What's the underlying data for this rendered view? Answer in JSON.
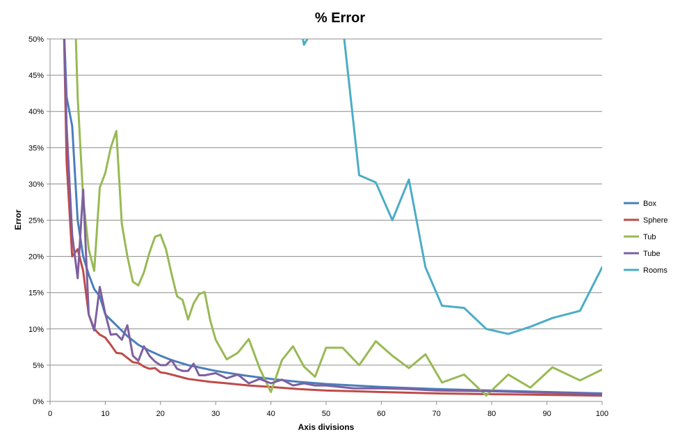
{
  "chart_data": {
    "type": "line",
    "title": "% Error",
    "xlabel": "Axis divisions",
    "ylabel": "Error",
    "xlim": [
      0,
      100
    ],
    "ylim": [
      0,
      0.5
    ],
    "x_ticks": [
      0,
      10,
      20,
      30,
      40,
      50,
      60,
      70,
      80,
      90,
      100
    ],
    "y_ticks": [
      0,
      0.05,
      0.1,
      0.15,
      0.2,
      0.25,
      0.3,
      0.35,
      0.4,
      0.45,
      0.5
    ],
    "x_tick_labels": [
      "0",
      "10",
      "20",
      "30",
      "40",
      "50",
      "60",
      "70",
      "80",
      "90",
      "100"
    ],
    "y_tick_labels": [
      "0%",
      "5%",
      "10%",
      "15%",
      "20%",
      "25%",
      "30%",
      "35%",
      "40%",
      "45%",
      "50%"
    ],
    "grid": "horizontal",
    "legend_position": "right",
    "series": [
      {
        "name": "Box",
        "color": "#4a7ebb",
        "points": [
          [
            2.5,
            0.52
          ],
          [
            3,
            0.42
          ],
          [
            4,
            0.38
          ],
          [
            5,
            0.25
          ],
          [
            6,
            0.2
          ],
          [
            7,
            0.175
          ],
          [
            8,
            0.155
          ],
          [
            9,
            0.145
          ],
          [
            10,
            0.12
          ],
          [
            12,
            0.105
          ],
          [
            14,
            0.09
          ],
          [
            16,
            0.078
          ],
          [
            18,
            0.07
          ],
          [
            20,
            0.063
          ],
          [
            22,
            0.057
          ],
          [
            25,
            0.05
          ],
          [
            30,
            0.042
          ],
          [
            35,
            0.036
          ],
          [
            40,
            0.031
          ],
          [
            45,
            0.027
          ],
          [
            50,
            0.024
          ],
          [
            55,
            0.022
          ],
          [
            60,
            0.02
          ],
          [
            70,
            0.017
          ],
          [
            80,
            0.015
          ],
          [
            90,
            0.013
          ],
          [
            100,
            0.011
          ]
        ]
      },
      {
        "name": "Sphere",
        "color": "#be4b48",
        "points": [
          [
            2.5,
            0.52
          ],
          [
            3,
            0.33
          ],
          [
            4,
            0.2
          ],
          [
            5,
            0.21
          ],
          [
            6,
            0.18
          ],
          [
            7,
            0.12
          ],
          [
            8,
            0.1
          ],
          [
            9,
            0.092
          ],
          [
            10,
            0.088
          ],
          [
            11,
            0.078
          ],
          [
            12,
            0.067
          ],
          [
            13,
            0.066
          ],
          [
            15,
            0.054
          ],
          [
            16,
            0.053
          ],
          [
            17,
            0.048
          ],
          [
            18,
            0.045
          ],
          [
            19,
            0.046
          ],
          [
            20,
            0.04
          ],
          [
            21,
            0.039
          ],
          [
            23,
            0.035
          ],
          [
            25,
            0.031
          ],
          [
            27,
            0.029
          ],
          [
            29,
            0.027
          ],
          [
            32,
            0.025
          ],
          [
            36,
            0.022
          ],
          [
            40,
            0.02
          ],
          [
            45,
            0.017
          ],
          [
            50,
            0.015
          ],
          [
            55,
            0.014
          ],
          [
            60,
            0.013
          ],
          [
            65,
            0.012
          ],
          [
            70,
            0.011
          ],
          [
            80,
            0.01
          ],
          [
            90,
            0.009
          ],
          [
            100,
            0.008
          ]
        ]
      },
      {
        "name": "Tub",
        "color": "#98b954",
        "points": [
          [
            4.6,
            0.52
          ],
          [
            5,
            0.42
          ],
          [
            6,
            0.28
          ],
          [
            7,
            0.21
          ],
          [
            8,
            0.18
          ],
          [
            9,
            0.295
          ],
          [
            10,
            0.315
          ],
          [
            11,
            0.35
          ],
          [
            12,
            0.373
          ],
          [
            13,
            0.245
          ],
          [
            14,
            0.2
          ],
          [
            15,
            0.165
          ],
          [
            16,
            0.16
          ],
          [
            17,
            0.178
          ],
          [
            18,
            0.205
          ],
          [
            19,
            0.227
          ],
          [
            20,
            0.23
          ],
          [
            21,
            0.21
          ],
          [
            22,
            0.176
          ],
          [
            23,
            0.145
          ],
          [
            24,
            0.14
          ],
          [
            25,
            0.113
          ],
          [
            26,
            0.135
          ],
          [
            27,
            0.148
          ],
          [
            28,
            0.151
          ],
          [
            29,
            0.112
          ],
          [
            30,
            0.085
          ],
          [
            32,
            0.058
          ],
          [
            34,
            0.067
          ],
          [
            36,
            0.086
          ],
          [
            38,
            0.045
          ],
          [
            40,
            0.013
          ],
          [
            42,
            0.057
          ],
          [
            44,
            0.076
          ],
          [
            46,
            0.048
          ],
          [
            48,
            0.034
          ],
          [
            50,
            0.074
          ],
          [
            53,
            0.074
          ],
          [
            56,
            0.05
          ],
          [
            59,
            0.083
          ],
          [
            62,
            0.063
          ],
          [
            65,
            0.046
          ],
          [
            68,
            0.065
          ],
          [
            71,
            0.026
          ],
          [
            75,
            0.037
          ],
          [
            79,
            0.008
          ],
          [
            83,
            0.037
          ],
          [
            87,
            0.019
          ],
          [
            91,
            0.047
          ],
          [
            96,
            0.029
          ],
          [
            100,
            0.044
          ]
        ]
      },
      {
        "name": "Tube",
        "color": "#7d60a0",
        "points": [
          [
            2.5,
            0.52
          ],
          [
            3,
            0.38
          ],
          [
            4,
            0.23
          ],
          [
            5,
            0.17
          ],
          [
            6,
            0.292
          ],
          [
            7,
            0.12
          ],
          [
            8,
            0.098
          ],
          [
            9,
            0.158
          ],
          [
            10,
            0.121
          ],
          [
            11,
            0.092
          ],
          [
            12,
            0.093
          ],
          [
            13,
            0.085
          ],
          [
            14,
            0.105
          ],
          [
            15,
            0.063
          ],
          [
            16,
            0.056
          ],
          [
            17,
            0.076
          ],
          [
            18,
            0.063
          ],
          [
            19,
            0.055
          ],
          [
            20,
            0.05
          ],
          [
            21,
            0.05
          ],
          [
            22,
            0.057
          ],
          [
            23,
            0.045
          ],
          [
            24,
            0.042
          ],
          [
            25,
            0.042
          ],
          [
            26,
            0.052
          ],
          [
            27,
            0.036
          ],
          [
            28,
            0.036
          ],
          [
            30,
            0.039
          ],
          [
            32,
            0.032
          ],
          [
            34,
            0.037
          ],
          [
            36,
            0.025
          ],
          [
            38,
            0.031
          ],
          [
            40,
            0.025
          ],
          [
            42,
            0.03
          ],
          [
            44,
            0.022
          ],
          [
            46,
            0.025
          ],
          [
            48,
            0.022
          ],
          [
            50,
            0.022
          ],
          [
            55,
            0.018
          ],
          [
            60,
            0.018
          ],
          [
            65,
            0.017
          ],
          [
            70,
            0.015
          ],
          [
            80,
            0.014
          ],
          [
            90,
            0.012
          ],
          [
            100,
            0.01
          ]
        ]
      },
      {
        "name": "Rooms",
        "color": "#4bacc6",
        "segments": [
          [
            [
              45.3,
              0.52
            ],
            [
              46,
              0.492
            ],
            [
              47,
              0.505
            ],
            [
              47.4,
              0.52
            ]
          ],
          [
            [
              53,
              0.52
            ],
            [
              56,
              0.312
            ],
            [
              59,
              0.302
            ],
            [
              62,
              0.25
            ],
            [
              65,
              0.306
            ],
            [
              68,
              0.185
            ],
            [
              71,
              0.132
            ],
            [
              75,
              0.129
            ],
            [
              79,
              0.1
            ],
            [
              83,
              0.093
            ],
            [
              87,
              0.103
            ],
            [
              91,
              0.115
            ],
            [
              96,
              0.125
            ],
            [
              100,
              0.185
            ]
          ]
        ]
      }
    ]
  }
}
